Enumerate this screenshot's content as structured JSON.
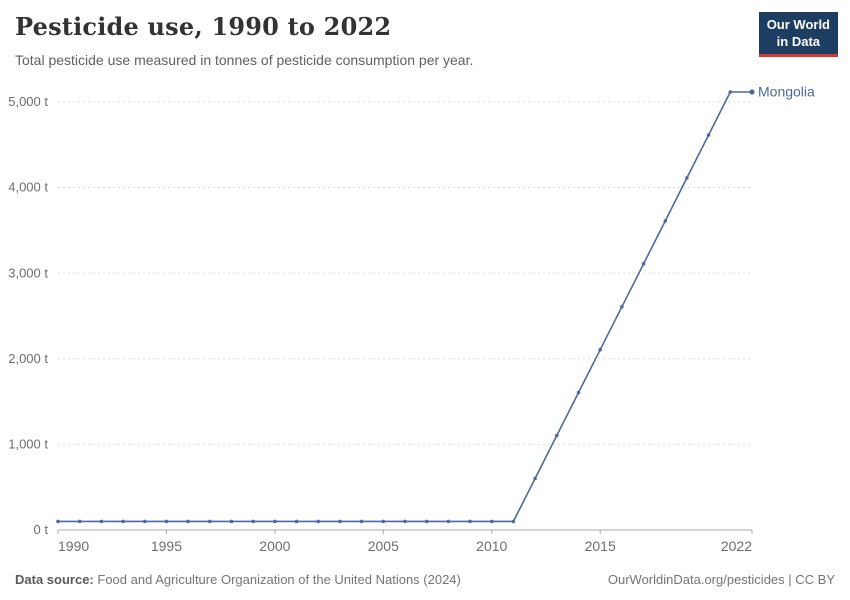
{
  "header": {
    "title": "Pesticide use, 1990 to 2022",
    "subtitle": "Total pesticide use measured in tonnes of pesticide consumption per year.",
    "logo": {
      "line1": "Our World",
      "line2": "in Data"
    }
  },
  "chart_data": {
    "type": "line",
    "title": "Pesticide use, 1990 to 2022",
    "xlabel": "",
    "ylabel": "",
    "unit": "t",
    "grid": "horizontal-dashed",
    "legend_position": "end-of-line-label",
    "xlim": [
      1990,
      2022
    ],
    "ylim": [
      0,
      5115
    ],
    "x_ticks": [
      1990,
      1995,
      2000,
      2005,
      2010,
      2015,
      2022
    ],
    "y_ticks": [
      0,
      1000,
      2000,
      3000,
      4000,
      5000
    ],
    "y_tick_labels": [
      "0 t",
      "1,000 t",
      "2,000 t",
      "3,000 t",
      "4,000 t",
      "5,000 t"
    ],
    "series": [
      {
        "name": "Mongolia",
        "color": "#4C6A9C",
        "x": [
          1990,
          1991,
          1992,
          1993,
          1994,
          1995,
          1996,
          1997,
          1998,
          1999,
          2000,
          2001,
          2002,
          2003,
          2004,
          2005,
          2006,
          2007,
          2008,
          2009,
          2010,
          2011,
          2012,
          2013,
          2014,
          2015,
          2016,
          2017,
          2018,
          2019,
          2020,
          2021,
          2022
        ],
        "values": [
          100,
          100,
          100,
          100,
          100,
          100,
          100,
          100,
          100,
          100,
          100,
          100,
          100,
          100,
          100,
          100,
          100,
          100,
          100,
          100,
          100,
          100,
          601,
          1103,
          1604,
          2106,
          2607,
          3109,
          3610,
          4112,
          4613,
          5115,
          5115
        ]
      }
    ]
  },
  "footer": {
    "source_label": "Data source:",
    "source_text": "Food and Agriculture Organization of the United Nations (2024)",
    "link_text": "OurWorldinData.org/pesticides | CC BY"
  },
  "colors": {
    "series_mongolia": "#4C6A9C",
    "gridline": "#dcdcdc",
    "axis": "#a8a8a8",
    "axis_text": "#6e6e6e",
    "title_text": "#333333",
    "subtitle_text": "#616161",
    "footer_text": "#757575",
    "logo_bg": "#1d3d63",
    "logo_accent": "#d7382b"
  }
}
